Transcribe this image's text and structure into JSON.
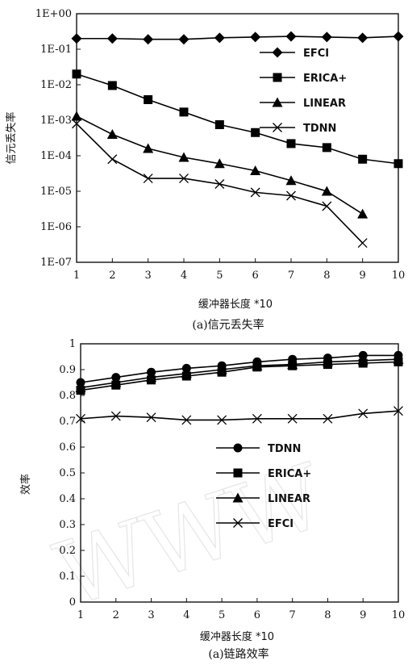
{
  "chart_data": [
    {
      "type": "line",
      "scale": "log",
      "xlabel": "缓冲器长度 *10",
      "ylabel": "信元丢失率",
      "caption": "(a)信元丢失率",
      "x": [
        1,
        2,
        3,
        4,
        5,
        6,
        7,
        8,
        9,
        10
      ],
      "xticks": [
        "1",
        "2",
        "3",
        "4",
        "5",
        "6",
        "7",
        "8",
        "9",
        "10"
      ],
      "ylim": [
        1e-07,
        1
      ],
      "yticks": [
        "1E+00",
        "1E-01",
        "1E-02",
        "1E-03",
        "1E-04",
        "1E-05",
        "1E-06",
        "1E-07"
      ],
      "ytick_values": [
        1,
        0.1,
        0.01,
        0.001,
        0.0001,
        1e-05,
        1e-06,
        1e-07
      ],
      "legend_position": "top-right",
      "series": [
        {
          "name": "EFCI",
          "marker": "diamond",
          "values": [
            0.2,
            0.2,
            0.19,
            0.19,
            0.21,
            0.22,
            0.23,
            0.22,
            0.21,
            0.23
          ]
        },
        {
          "name": "ERICA+",
          "marker": "square",
          "values": [
            0.02,
            0.0095,
            0.0038,
            0.0017,
            0.00075,
            0.00045,
            0.00022,
            0.00017,
            8e-05,
            6e-05
          ]
        },
        {
          "name": "LINEAR",
          "marker": "triangle",
          "values": [
            0.0013,
            0.0004,
            0.00016,
            9e-05,
            6e-05,
            3.8e-05,
            2e-05,
            1e-05,
            2.3e-06,
            null
          ]
        },
        {
          "name": "TDNN",
          "marker": "x",
          "values": [
            0.0008,
            8e-05,
            2.3e-05,
            2.3e-05,
            1.6e-05,
            9.3e-06,
            7.5e-06,
            3.8e-06,
            3.5e-07,
            null
          ]
        }
      ]
    },
    {
      "type": "line",
      "scale": "linear",
      "xlabel": "缓冲器长度 *10",
      "ylabel": "效率",
      "caption": "(a)链路效率",
      "x": [
        1,
        2,
        3,
        4,
        5,
        6,
        7,
        8,
        9,
        10
      ],
      "xticks": [
        "1",
        "2",
        "3",
        "4",
        "5",
        "6",
        "7",
        "8",
        "9",
        "10"
      ],
      "ylim": [
        0,
        1
      ],
      "yticks": [
        "1",
        "0.9",
        "0.8",
        "0.7",
        "0.6",
        "0.5",
        "0.4",
        "0.3",
        "0.2",
        "0.1",
        "0"
      ],
      "ytick_values": [
        1,
        0.9,
        0.8,
        0.7,
        0.6,
        0.5,
        0.4,
        0.3,
        0.2,
        0.1,
        0
      ],
      "legend_position": "center-right",
      "series": [
        {
          "name": "TDNN",
          "marker": "circle",
          "values": [
            0.85,
            0.87,
            0.89,
            0.905,
            0.915,
            0.93,
            0.94,
            0.945,
            0.955,
            0.955
          ]
        },
        {
          "name": "ERICA+",
          "marker": "square",
          "values": [
            0.82,
            0.84,
            0.86,
            0.875,
            0.89,
            0.91,
            0.915,
            0.92,
            0.925,
            0.93
          ]
        },
        {
          "name": "LINEAR",
          "marker": "triangle",
          "values": [
            0.83,
            0.85,
            0.87,
            0.885,
            0.9,
            0.915,
            0.92,
            0.93,
            0.935,
            0.94
          ]
        },
        {
          "name": "EFCI",
          "marker": "x",
          "values": [
            0.71,
            0.72,
            0.715,
            0.705,
            0.705,
            0.71,
            0.71,
            0.71,
            0.73,
            0.74
          ]
        }
      ]
    }
  ],
  "watermark": "WWW"
}
